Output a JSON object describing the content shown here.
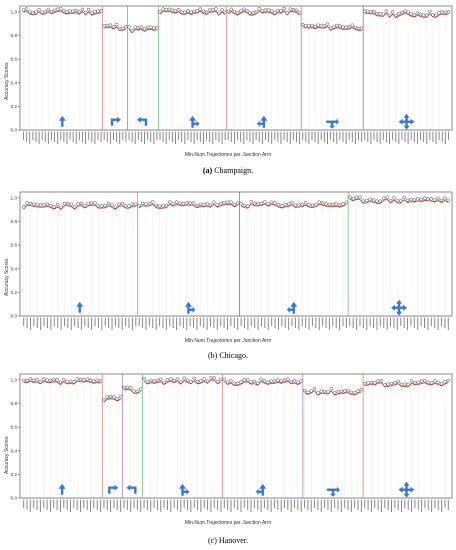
{
  "chart_data": [
    {
      "type": "line",
      "caption_letter": "(a)",
      "caption_text": "Champaign.",
      "xlabel": "Min.Num.Trajectories per Junction Arm",
      "ylabel": "Accuracy Scores",
      "ylim": [
        0,
        1.05
      ],
      "yticks": [
        0.0,
        0.2,
        0.4,
        0.6,
        0.8,
        1.0
      ],
      "grid": false,
      "segments": [
        {
          "n": 26,
          "level": 0.99,
          "color": "#e57373",
          "icon": "straight-arrow-icon"
        },
        {
          "n": 8,
          "level": 0.86,
          "color": "#9575cd",
          "icon": "right-turn-arrow-icon"
        },
        {
          "n": 10,
          "level": 0.84,
          "color": "#66bb6a",
          "icon": "left-turn-arrow-icon"
        },
        {
          "n": 22,
          "level": 0.99,
          "color": "#e57373",
          "icon": "t-junction-right-icon"
        },
        {
          "n": 24,
          "level": 0.99,
          "color": "#9575cd",
          "icon": "t-junction-left-icon"
        },
        {
          "n": 20,
          "level": 0.86,
          "color": "#5c6bc0",
          "icon": "t-junction-down-icon"
        },
        {
          "n": 28,
          "level": 0.97,
          "color": "#66bb6a",
          "icon": "crossroad-icon"
        }
      ]
    },
    {
      "type": "line",
      "caption_letter": "(b)",
      "caption_text": "Chicago.",
      "xlabel": "Min.Num.Trajectories per Junction Arm",
      "ylabel": "Accuracy Scores",
      "ylim": [
        0,
        1.05
      ],
      "yticks": [
        0.0,
        0.2,
        0.4,
        0.6,
        0.8,
        1.0
      ],
      "grid": false,
      "segments": [
        {
          "n": 34,
          "level": 0.92,
          "color": "#e57373",
          "icon": "straight-arrow-icon"
        },
        {
          "n": 30,
          "level": 0.93,
          "color": "#5c6bc0",
          "icon": "t-junction-right-icon"
        },
        {
          "n": 32,
          "level": 0.93,
          "color": "#66bb6a",
          "icon": "t-junction-left-icon"
        },
        {
          "n": 30,
          "level": 0.97,
          "color": "#66bb6a",
          "icon": "crossroad-icon"
        }
      ]
    },
    {
      "type": "line",
      "caption_letter": "(c)",
      "caption_text": "Hanover.",
      "xlabel": "Min.Num.Trajectories per Junction Arm",
      "ylabel": "Accuracy Scores",
      "ylim": [
        0,
        1.05
      ],
      "yticks": [
        0.0,
        0.2,
        0.4,
        0.6,
        0.8,
        1.0
      ],
      "grid": false,
      "segments": [
        {
          "n": 24,
          "level": 0.97,
          "color": "#e57373",
          "icon": "straight-arrow-icon"
        },
        {
          "n": 6,
          "level": 0.83,
          "color": "#9575cd",
          "icon": "right-turn-arrow-icon"
        },
        {
          "n": 6,
          "level": 0.9,
          "color": "#66bb6a",
          "icon": "left-turn-arrow-icon"
        },
        {
          "n": 24,
          "level": 0.98,
          "color": "#e57373",
          "icon": "t-junction-right-icon"
        },
        {
          "n": 24,
          "level": 0.97,
          "color": "#9575cd",
          "icon": "t-junction-left-icon"
        },
        {
          "n": 18,
          "level": 0.89,
          "color": "#e57373",
          "icon": "t-junction-down-icon"
        },
        {
          "n": 26,
          "level": 0.96,
          "color": "#66bb6a",
          "icon": "crossroad-icon"
        }
      ]
    }
  ],
  "colors": {
    "line": "#c0392b",
    "marker_edge": "#333333",
    "icon": "#3a78c9"
  }
}
